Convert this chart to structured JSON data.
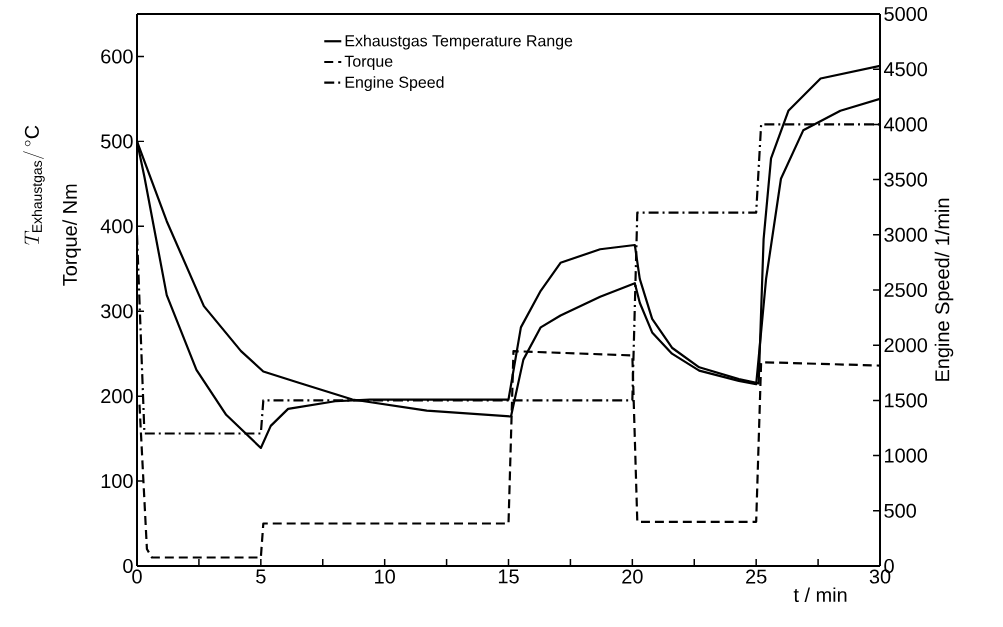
{
  "chart_data": {
    "type": "line",
    "xlabel": "t / min",
    "ylabel": "Torque/ Nm",
    "y2label": "Engine Speed/ 1/min",
    "annotations": [
      "T_{\\mathrm{Exhaustgas}}/\\,^{\\circ}\\mathrm{C}"
    ],
    "xlim": [
      0,
      30
    ],
    "xticks": [
      0,
      {
        "value": 2.5,
        "label": null
      },
      5,
      {
        "value": 7.5,
        "label": null
      },
      10,
      {
        "value": 12.5,
        "label": null
      },
      15,
      {
        "value": 17.5,
        "label": null
      },
      20,
      {
        "value": 22.5,
        "label": null
      },
      25,
      {
        "value": 27.5,
        "label": null
      },
      30
    ],
    "ylim": [
      0,
      650
    ],
    "yticks": [
      0,
      100,
      200,
      300,
      400,
      500,
      600
    ],
    "y2lim": [
      0,
      5000
    ],
    "y2ticks": [
      0,
      500,
      1000,
      1500,
      2000,
      2500,
      3000,
      3500,
      4000,
      4500,
      5000
    ],
    "legend": "top",
    "marker": "none",
    "series": [
      {
        "name": "Exhaustgas Temperature Range",
        "color": "#000000",
        "line_style": "solid",
        "x": [
          0,
          1.2,
          2.7,
          4.2,
          5.1,
          6.5,
          8.7,
          11.7,
          15.1,
          15.6,
          16.3,
          17.1,
          18.7,
          20.1,
          20.3,
          20.8,
          21.6,
          22.7,
          24.3,
          25.0,
          25.4,
          26.0,
          26.9,
          28.4,
          30
        ],
        "values": [
          500,
          406,
          306,
          253,
          229,
          216,
          196,
          183,
          176,
          243,
          281,
          295,
          317,
          333,
          310,
          275,
          250,
          230,
          218,
          214,
          338,
          456,
          513,
          536,
          550
        ]
      },
      {
        "color": "#000000",
        "line_style": "solid",
        "x": [
          0,
          0.3,
          1.2,
          2.4,
          3.6,
          5.0,
          5.4,
          6.1,
          8.0,
          9.4,
          15.0,
          15.5,
          16.3,
          17.1,
          18.7,
          20.1,
          20.3,
          20.8,
          21.6,
          22.7,
          24.3,
          25.1,
          25.3,
          25.6,
          26.3,
          27.6,
          30
        ],
        "values": [
          500,
          458,
          319,
          231,
          178,
          139,
          165,
          185,
          194,
          196,
          196,
          281,
          324,
          357,
          373,
          378,
          338,
          291,
          257,
          234,
          220,
          215,
          385,
          480,
          536,
          574,
          589
        ]
      },
      {
        "name": "Torque",
        "color": "#000000",
        "line_style": "dashed",
        "x": [
          0.1,
          0.4,
          0.6,
          5.0,
          5.1,
          15.0,
          15.2,
          20.0,
          20.2,
          25.0,
          25.2,
          30
        ],
        "values": [
          190,
          20,
          10,
          10,
          50,
          50,
          253,
          248,
          52,
          52,
          240,
          236
        ]
      },
      {
        "name": "Engine Speed",
        "color": "#000000",
        "line_style": "dashdot",
        "axis": "y2",
        "x": [
          0,
          0.3,
          5.0,
          5.1,
          20.0,
          20.2,
          25.0,
          25.2,
          30
        ],
        "values": [
          3000,
          1200,
          1200,
          1500,
          1500,
          3200,
          3200,
          4000,
          4000
        ]
      }
    ]
  }
}
